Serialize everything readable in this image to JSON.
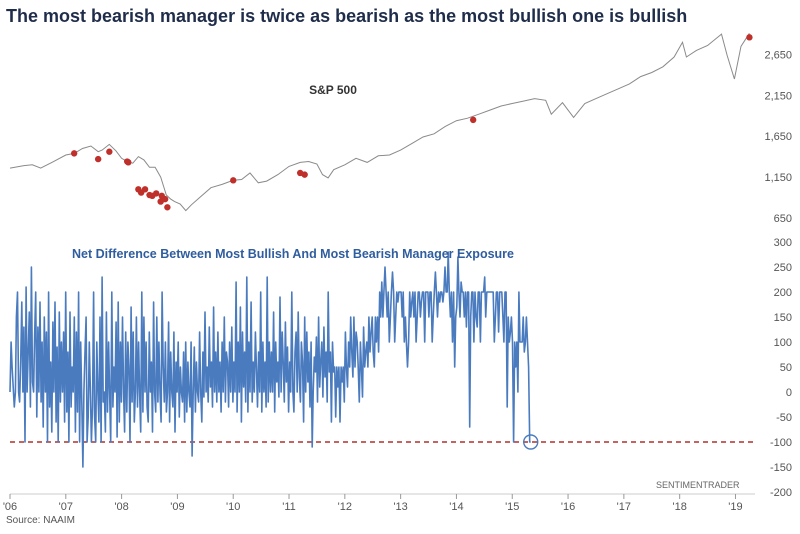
{
  "title": "The most bearish manager is twice as bearish as the most bullish one is bullish",
  "source": "Source: NAAIM",
  "watermark": "SENTIMENTRADER",
  "colors": {
    "title": "#1f2d4a",
    "spx_line": "#8a8a8a",
    "dots": "#c0302b",
    "net_line": "#4a7bbf",
    "threshold": "#b0302b",
    "label_blue": "#2f5d9e",
    "grid": "#cccccc",
    "tick_text": "#555555"
  },
  "chart_data": [
    {
      "type": "line",
      "title": "S&P 500",
      "y_ticks": [
        "650",
        "1,150",
        "1,650",
        "2,150",
        "2,650"
      ],
      "y_tick_values": [
        650,
        1150,
        1650,
        2150,
        2650
      ],
      "ylim": [
        600,
        2950
      ],
      "x_ticks": [
        "'06",
        "'07",
        "'08",
        "'09",
        "'10",
        "'11",
        "'12",
        "'13",
        "'14",
        "'15",
        "'16",
        "'17",
        "'18",
        "'19"
      ],
      "x_tick_values": [
        2006,
        2007,
        2008,
        2009,
        2010,
        2011,
        2012,
        2013,
        2014,
        2015,
        2016,
        2017,
        2018,
        2019
      ],
      "xlim": [
        2006.0,
        2019.35
      ],
      "x": [
        2006.0,
        2006.25,
        2006.4,
        2006.55,
        2006.75,
        2007.0,
        2007.15,
        2007.3,
        2007.45,
        2007.58,
        2007.65,
        2007.78,
        2007.9,
        2008.0,
        2008.1,
        2008.2,
        2008.3,
        2008.4,
        2008.5,
        2008.6,
        2008.7,
        2008.8,
        2008.88,
        2008.95,
        2009.05,
        2009.15,
        2009.25,
        2009.4,
        2009.6,
        2009.8,
        2010.0,
        2010.15,
        2010.3,
        2010.45,
        2010.6,
        2010.8,
        2011.0,
        2011.2,
        2011.35,
        2011.5,
        2011.6,
        2011.7,
        2011.8,
        2012.0,
        2012.2,
        2012.4,
        2012.6,
        2012.8,
        2013.0,
        2013.2,
        2013.4,
        2013.6,
        2013.8,
        2014.0,
        2014.2,
        2014.4,
        2014.6,
        2014.8,
        2015.0,
        2015.2,
        2015.4,
        2015.6,
        2015.7,
        2015.9,
        2016.1,
        2016.3,
        2016.5,
        2016.7,
        2016.9,
        2017.1,
        2017.3,
        2017.5,
        2017.7,
        2017.9,
        2018.05,
        2018.12,
        2018.3,
        2018.5,
        2018.75,
        2018.85,
        2018.98,
        2019.1,
        2019.25
      ],
      "y": [
        1260,
        1290,
        1300,
        1260,
        1330,
        1420,
        1440,
        1500,
        1530,
        1460,
        1480,
        1550,
        1470,
        1380,
        1340,
        1320,
        1400,
        1360,
        1270,
        1270,
        1150,
        930,
        880,
        850,
        820,
        740,
        810,
        900,
        1020,
        1060,
        1110,
        1120,
        1200,
        1080,
        1100,
        1180,
        1280,
        1330,
        1340,
        1310,
        1180,
        1140,
        1240,
        1300,
        1380,
        1330,
        1410,
        1420,
        1480,
        1560,
        1640,
        1680,
        1770,
        1840,
        1870,
        1920,
        1970,
        2020,
        2050,
        2080,
        2110,
        2090,
        1920,
        2060,
        1880,
        2050,
        2110,
        2170,
        2230,
        2290,
        2380,
        2430,
        2500,
        2620,
        2800,
        2620,
        2700,
        2760,
        2900,
        2640,
        2350,
        2750,
        2910
      ],
      "highlight_x": [
        2007.15,
        2007.58,
        2007.78,
        2008.1,
        2008.12,
        2008.3,
        2008.35,
        2008.42,
        2008.5,
        2008.55,
        2008.62,
        2008.7,
        2008.72,
        2008.78,
        2008.82,
        2010.0,
        2011.2,
        2011.28,
        2014.3,
        2019.25
      ],
      "highlight_y": [
        1440,
        1370,
        1460,
        1340,
        1330,
        1000,
        960,
        1000,
        930,
        920,
        950,
        850,
        920,
        880,
        780,
        1110,
        1200,
        1180,
        1850,
        2860
      ]
    },
    {
      "type": "line",
      "title": "Net Difference Between Most Bullish And Most Bearish Manager Exposure",
      "y_ticks": [
        "-200",
        "-150",
        "-100",
        "-50",
        "0",
        "50",
        "100",
        "150",
        "200",
        "250",
        "300"
      ],
      "y_tick_values": [
        -200,
        -150,
        -100,
        -50,
        0,
        50,
        100,
        150,
        200,
        250,
        300
      ],
      "ylim": [
        -200,
        300
      ],
      "threshold": -100,
      "xlim": [
        2006.0,
        2019.35
      ],
      "x_start": 2006.0,
      "x_step": 0.0192,
      "values": [
        0,
        100,
        50,
        10,
        -30,
        0,
        150,
        200,
        0,
        -20,
        60,
        180,
        0,
        130,
        -100,
        210,
        0,
        80,
        160,
        -30,
        250,
        20,
        0,
        110,
        200,
        -50,
        130,
        0,
        180,
        -20,
        100,
        -70,
        150,
        0,
        120,
        -100,
        200,
        -30,
        60,
        -80,
        140,
        0,
        180,
        -60,
        90,
        -100,
        160,
        -20,
        100,
        0,
        120,
        -60,
        200,
        -40,
        80,
        -100,
        160,
        -30,
        50,
        0,
        150,
        -80,
        120,
        -40,
        200,
        -100,
        100,
        -20,
        -150,
        0,
        80,
        150,
        -100,
        -50,
        100,
        0,
        -100,
        -30,
        200,
        -50,
        -100,
        100,
        0,
        -60,
        150,
        -100,
        230,
        -20,
        0,
        -80,
        160,
        -40,
        100,
        0,
        -100,
        200,
        -30,
        50,
        0,
        140,
        -90,
        180,
        -60,
        100,
        -20,
        150,
        0,
        -80,
        120,
        -40,
        100,
        50,
        -100,
        170,
        -20,
        120,
        -60,
        0,
        150,
        -30,
        100,
        0,
        -80,
        200,
        -40,
        150,
        0,
        100,
        -30,
        -60,
        120,
        0,
        60,
        -80,
        180,
        0,
        -40,
        150,
        -20,
        100,
        0,
        -60,
        200,
        50,
        -20,
        100,
        -40,
        0,
        140,
        -60,
        80,
        0,
        -30,
        120,
        -80,
        60,
        0,
        100,
        -50,
        50,
        0,
        -20,
        80,
        -60,
        100,
        -40,
        60,
        0,
        -30,
        100,
        -128,
        0,
        90,
        -40,
        60,
        0,
        -20,
        120,
        0,
        -60,
        80,
        -10,
        160,
        0,
        50,
        -20,
        130,
        10,
        60,
        -30,
        170,
        0,
        80,
        -20,
        120,
        0,
        60,
        -40,
        100,
        0,
        150,
        -20,
        80,
        60,
        -30,
        100,
        0,
        130,
        -20,
        60,
        0,
        220,
        -40,
        100,
        0,
        170,
        -60,
        120,
        10,
        80,
        -20,
        230,
        -40,
        100,
        0,
        180,
        -20,
        60,
        0,
        120,
        50,
        -30,
        80,
        0,
        200,
        -40,
        100,
        0,
        60,
        -30,
        230,
        -20,
        100,
        0,
        80,
        0,
        160,
        -40,
        100,
        20,
        60,
        -10,
        190,
        0,
        120,
        60,
        -20,
        140,
        20,
        90,
        -40,
        60,
        0,
        200,
        0,
        -40,
        80,
        120,
        0,
        160,
        30,
        -20,
        100,
        60,
        -60,
        150,
        0,
        120,
        20,
        80,
        -30,
        100,
        -110,
        0,
        70,
        40,
        110,
        -20,
        150,
        10,
        60,
        100,
        -10,
        130,
        30,
        80,
        -20,
        200,
        40,
        80,
        -60,
        100,
        40,
        50,
        -50,
        50,
        10,
        50,
        -60,
        50,
        20,
        50,
        -20,
        120,
        50,
        10,
        100,
        50,
        150,
        80,
        30,
        150,
        50,
        120,
        100,
        50,
        -20,
        100,
        50,
        -10,
        130,
        50,
        80,
        100,
        50,
        150,
        80,
        120,
        150,
        80,
        50,
        150,
        100,
        150,
        80,
        200,
        150,
        220,
        150,
        200,
        250,
        200,
        150,
        200,
        100,
        150,
        200,
        240,
        200,
        100,
        150,
        200,
        180,
        200,
        200,
        200,
        150,
        200,
        100,
        150,
        100,
        50,
        100,
        200,
        150,
        180,
        200,
        150,
        200,
        100,
        150,
        200,
        200,
        150,
        180,
        200,
        200,
        100,
        200,
        200,
        200,
        150,
        200,
        200,
        100,
        150,
        200,
        240,
        200,
        150,
        200,
        180,
        200,
        200,
        180,
        200,
        250,
        200,
        200,
        280,
        200,
        150,
        200,
        100,
        200,
        50,
        150,
        170,
        270,
        200,
        150,
        220,
        200,
        200,
        150,
        200,
        130,
        200,
        200,
        -70,
        150,
        200,
        200,
        100,
        200,
        150,
        130,
        200,
        200,
        100,
        200,
        200,
        200,
        230,
        150,
        200,
        200,
        200,
        200,
        200,
        200,
        200,
        100,
        150,
        200,
        200,
        120,
        200,
        200,
        200,
        150,
        100,
        200,
        200,
        -30,
        150,
        100,
        120,
        150,
        100,
        -100,
        100,
        50,
        100,
        0,
        200,
        100,
        100,
        100,
        150,
        80,
        100,
        150,
        100,
        50,
        -100,
        -100
      ]
    }
  ]
}
